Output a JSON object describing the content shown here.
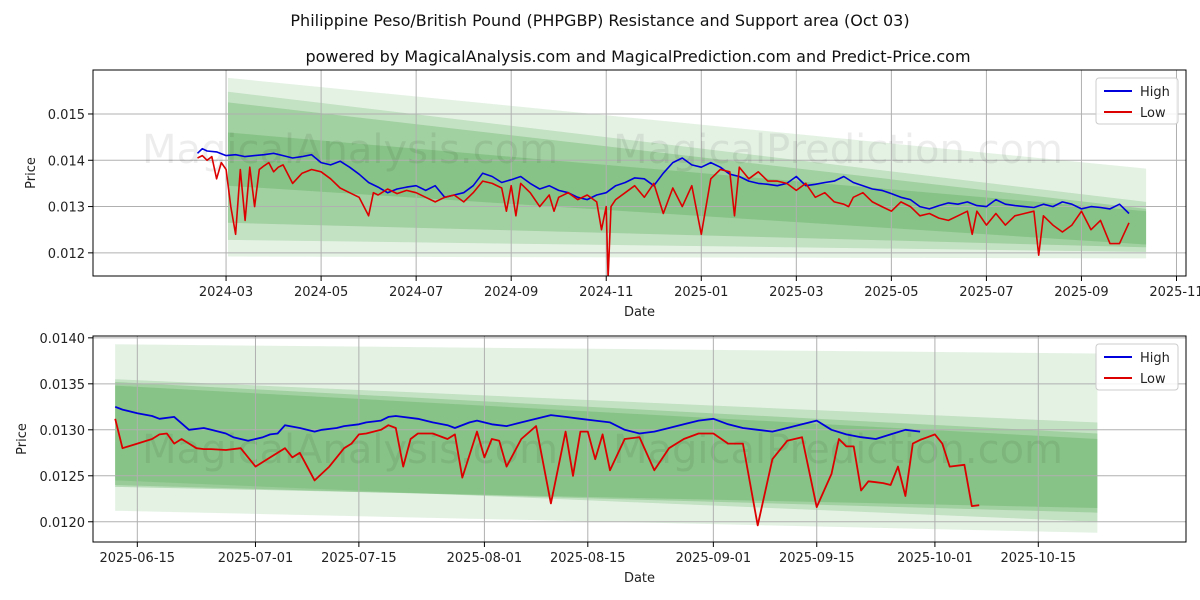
{
  "title": "Philippine Peso/British Pound (PHPGBP) Resistance and Support area (Oct 03)",
  "subtitle": "powered by MagicalAnalysis.com and MagicalPrediction.com and Predict-Price.com",
  "watermark": "MagicalAnalysis.com    MagicalPrediction.com",
  "colors": {
    "high": "#0000dd",
    "low": "#dd0000",
    "band": "#4ca64c"
  },
  "chart_data": [
    {
      "type": "line",
      "xlabel": "Date",
      "ylabel": "Price",
      "x_ticks": [
        "2024-03",
        "2024-05",
        "2024-07",
        "2024-09",
        "2024-11",
        "2025-01",
        "2025-03",
        "2025-05",
        "2025-07",
        "2025-09",
        "2025-11"
      ],
      "y_ticks": [
        "0.012",
        "0.013",
        "0.014",
        "0.015"
      ],
      "ylim": [
        0.0115,
        0.01595
      ],
      "legend": [
        "High",
        "Low"
      ],
      "legend_position": "top-right",
      "grid": true,
      "bands": [
        {
          "x": [
            0.02,
            9.68
          ],
          "upper": [
            0.01578,
            0.01382
          ],
          "lower": [
            0.01192,
            0.01188
          ],
          "opacity": 0.15
        },
        {
          "x": [
            0.02,
            9.68
          ],
          "upper": [
            0.01548,
            0.0131
          ],
          "lower": [
            0.01228,
            0.01202
          ],
          "opacity": 0.22
        },
        {
          "x": [
            0.02,
            9.68
          ],
          "upper": [
            0.01525,
            0.01295
          ],
          "lower": [
            0.01265,
            0.01212
          ],
          "opacity": 0.28
        },
        {
          "x": [
            0.02,
            9.68
          ],
          "upper": [
            0.0146,
            0.0129
          ],
          "lower": [
            0.01345,
            0.01218
          ],
          "opacity": 0.3
        }
      ],
      "series": [
        {
          "name": "High",
          "x": [
            -0.3,
            -0.25,
            -0.2,
            -0.1,
            0,
            0.1,
            0.2,
            0.3,
            0.4,
            0.5,
            0.6,
            0.7,
            0.8,
            0.9,
            1.0,
            1.1,
            1.2,
            1.3,
            1.4,
            1.5,
            1.6,
            1.7,
            1.8,
            1.9,
            2.0,
            2.1,
            2.2,
            2.3,
            2.4,
            2.5,
            2.6,
            2.7,
            2.8,
            2.9,
            3.0,
            3.1,
            3.2,
            3.3,
            3.4,
            3.5,
            3.6,
            3.7,
            3.8,
            3.9,
            4.0,
            4.1,
            4.2,
            4.3,
            4.4,
            4.5,
            4.6,
            4.7,
            4.8,
            4.9,
            5.0,
            5.1,
            5.2,
            5.3,
            5.4,
            5.5,
            5.6,
            5.7,
            5.8,
            5.9,
            6.0,
            6.1,
            6.2,
            6.3,
            6.4,
            6.5,
            6.6,
            6.7,
            6.8,
            6.9,
            7.0,
            7.1,
            7.2,
            7.3,
            7.4,
            7.5,
            7.6,
            7.7,
            7.8,
            7.9,
            8.0,
            8.1,
            8.2,
            8.3,
            8.4,
            8.5,
            8.6,
            8.7,
            8.8,
            8.9,
            9.0,
            9.1,
            9.2,
            9.3,
            9.4,
            9.5
          ],
          "y": [
            0.01415,
            0.01425,
            0.0142,
            0.01418,
            0.0141,
            0.01412,
            0.01408,
            0.0141,
            0.01412,
            0.01415,
            0.0141,
            0.01405,
            0.01408,
            0.01412,
            0.01395,
            0.0139,
            0.01398,
            0.01385,
            0.0137,
            0.01352,
            0.01342,
            0.0133,
            0.01338,
            0.01342,
            0.01345,
            0.01335,
            0.01345,
            0.0132,
            0.01325,
            0.0133,
            0.01345,
            0.01372,
            0.01365,
            0.01352,
            0.01358,
            0.01365,
            0.0135,
            0.01338,
            0.01345,
            0.01335,
            0.0133,
            0.0132,
            0.01315,
            0.01325,
            0.0133,
            0.01345,
            0.01352,
            0.01362,
            0.0136,
            0.01345,
            0.01372,
            0.01395,
            0.01405,
            0.0139,
            0.01385,
            0.01395,
            0.01385,
            0.0137,
            0.01365,
            0.01355,
            0.0135,
            0.01348,
            0.01345,
            0.0135,
            0.01365,
            0.01345,
            0.01348,
            0.01352,
            0.01355,
            0.01365,
            0.01352,
            0.01345,
            0.01338,
            0.01335,
            0.01328,
            0.0132,
            0.01315,
            0.013,
            0.01295,
            0.01302,
            0.01308,
            0.01305,
            0.0131,
            0.01302,
            0.013,
            0.01315,
            0.01305,
            0.01302,
            0.013,
            0.01298,
            0.01305,
            0.013,
            0.0131,
            0.01305,
            0.01295,
            0.013,
            0.01298,
            0.01295,
            0.01305,
            0.01285
          ]
        },
        {
          "name": "Low",
          "x": [
            -0.3,
            -0.25,
            -0.2,
            -0.15,
            -0.1,
            -0.05,
            0,
            0.05,
            0.1,
            0.15,
            0.2,
            0.25,
            0.3,
            0.35,
            0.4,
            0.45,
            0.5,
            0.55,
            0.6,
            0.7,
            0.8,
            0.9,
            1.0,
            1.1,
            1.2,
            1.3,
            1.4,
            1.5,
            1.55,
            1.6,
            1.7,
            1.8,
            1.9,
            2.0,
            2.1,
            2.2,
            2.3,
            2.4,
            2.5,
            2.6,
            2.7,
            2.8,
            2.9,
            2.95,
            3.0,
            3.05,
            3.1,
            3.2,
            3.3,
            3.4,
            3.45,
            3.5,
            3.6,
            3.7,
            3.8,
            3.9,
            3.95,
            4.0,
            4.02,
            4.05,
            4.1,
            4.2,
            4.3,
            4.4,
            4.5,
            4.6,
            4.7,
            4.8,
            4.9,
            5.0,
            5.1,
            5.2,
            5.3,
            5.35,
            5.4,
            5.5,
            5.6,
            5.7,
            5.8,
            5.9,
            6.0,
            6.1,
            6.2,
            6.3,
            6.4,
            6.5,
            6.55,
            6.6,
            6.7,
            6.8,
            6.9,
            7.0,
            7.1,
            7.2,
            7.3,
            7.4,
            7.5,
            7.6,
            7.7,
            7.8,
            7.85,
            7.9,
            8.0,
            8.1,
            8.2,
            8.3,
            8.4,
            8.5,
            8.55,
            8.6,
            8.7,
            8.8,
            8.9,
            9.0,
            9.1,
            9.2,
            9.3,
            9.4,
            9.5
          ],
          "y": [
            0.01405,
            0.0141,
            0.014,
            0.01408,
            0.0136,
            0.01395,
            0.0138,
            0.013,
            0.0124,
            0.0138,
            0.0127,
            0.01385,
            0.013,
            0.0138,
            0.01388,
            0.01395,
            0.01375,
            0.01385,
            0.0139,
            0.0135,
            0.01372,
            0.0138,
            0.01375,
            0.0136,
            0.0134,
            0.0133,
            0.0132,
            0.0128,
            0.0133,
            0.01325,
            0.01338,
            0.01328,
            0.01335,
            0.0133,
            0.0132,
            0.0131,
            0.0132,
            0.01325,
            0.0131,
            0.0133,
            0.01355,
            0.0135,
            0.0134,
            0.0129,
            0.01345,
            0.0128,
            0.0135,
            0.0133,
            0.013,
            0.01325,
            0.0129,
            0.0132,
            0.0133,
            0.01315,
            0.01325,
            0.0131,
            0.0125,
            0.013,
            0.01145,
            0.013,
            0.01315,
            0.0133,
            0.01345,
            0.0132,
            0.0135,
            0.01285,
            0.0134,
            0.013,
            0.01345,
            0.0124,
            0.0136,
            0.0138,
            0.01375,
            0.0128,
            0.01385,
            0.0136,
            0.01375,
            0.01355,
            0.01355,
            0.0135,
            0.01335,
            0.0135,
            0.0132,
            0.0133,
            0.0131,
            0.01305,
            0.013,
            0.0132,
            0.0133,
            0.0131,
            0.013,
            0.0129,
            0.0131,
            0.013,
            0.0128,
            0.01285,
            0.01275,
            0.0127,
            0.0128,
            0.0129,
            0.0124,
            0.0129,
            0.0126,
            0.01285,
            0.0126,
            0.0128,
            0.01285,
            0.0129,
            0.01195,
            0.0128,
            0.0126,
            0.01245,
            0.0126,
            0.0129,
            0.0125,
            0.0127,
            0.0122,
            0.0122,
            0.01265
          ]
        }
      ]
    },
    {
      "type": "line",
      "xlabel": "Date",
      "ylabel": "Price",
      "x_ticks": [
        "2025-06-15",
        "2025-07-01",
        "2025-07-15",
        "2025-08-01",
        "2025-08-15",
        "2025-09-01",
        "2025-09-15",
        "2025-10-01",
        "2025-10-15"
      ],
      "y_ticks": [
        "0.0120",
        "0.0125",
        "0.0130",
        "0.0135",
        "0.0140"
      ],
      "ylim": [
        0.01178,
        0.01402
      ],
      "legend": [
        "High",
        "Low"
      ],
      "legend_position": "top-right",
      "grid": true,
      "bands": [
        {
          "x": [
            -3,
            130
          ],
          "upper": [
            0.01393,
            0.01383
          ],
          "lower": [
            0.01212,
            0.01188
          ],
          "opacity": 0.15
        },
        {
          "x": [
            -3,
            130
          ],
          "upper": [
            0.01355,
            0.01308
          ],
          "lower": [
            0.01245,
            0.012
          ],
          "opacity": 0.22
        },
        {
          "x": [
            -3,
            130
          ],
          "upper": [
            0.01352,
            0.01296
          ],
          "lower": [
            0.0124,
            0.0121
          ],
          "opacity": 0.28
        },
        {
          "x": [
            -3,
            130
          ],
          "upper": [
            0.01348,
            0.0129
          ],
          "lower": [
            0.01238,
            0.01215
          ],
          "opacity": 0.3
        }
      ],
      "series": [
        {
          "name": "High",
          "x": [
            -3,
            -2,
            0,
            2,
            3,
            5,
            7,
            9,
            10,
            12,
            13,
            15,
            16,
            17,
            18,
            19,
            20,
            22,
            24,
            25,
            27,
            28,
            30,
            31,
            33,
            34,
            35,
            38,
            40,
            42,
            43,
            45,
            46,
            48,
            50,
            52,
            54,
            56,
            58,
            60,
            62,
            64,
            66,
            68,
            70,
            72,
            74,
            76,
            78,
            80,
            82,
            84,
            86,
            88,
            90,
            92,
            94,
            96,
            98,
            100,
            102,
            104,
            106
          ],
          "y": [
            0.01325,
            0.01322,
            0.01318,
            0.01315,
            0.01312,
            0.01314,
            0.013,
            0.01302,
            0.013,
            0.01296,
            0.01292,
            0.01288,
            0.0129,
            0.01292,
            0.01295,
            0.01296,
            0.01305,
            0.01302,
            0.01298,
            0.013,
            0.01302,
            0.01304,
            0.01306,
            0.01308,
            0.0131,
            0.01314,
            0.01315,
            0.01312,
            0.01308,
            0.01305,
            0.01302,
            0.01308,
            0.0131,
            0.01306,
            0.01304,
            0.01308,
            0.01312,
            0.01316,
            0.01314,
            0.01312,
            0.0131,
            0.01308,
            0.013,
            0.01296,
            0.01298,
            0.01302,
            0.01306,
            0.0131,
            0.01312,
            0.01306,
            0.01302,
            0.013,
            0.01298,
            0.01302,
            0.01306,
            0.0131,
            0.013,
            0.01295,
            0.01292,
            0.0129,
            0.01295,
            0.013,
            0.01298
          ]
        },
        {
          "name": "Low",
          "x": [
            -3,
            -2,
            0,
            2,
            3,
            4,
            5,
            6,
            8,
            9,
            10,
            12,
            14,
            16,
            18,
            20,
            21,
            22,
            24,
            26,
            28,
            29,
            30,
            31,
            33,
            34,
            35,
            36,
            37,
            38,
            40,
            42,
            43,
            44,
            46,
            47,
            48,
            49,
            50,
            52,
            54,
            56,
            58,
            59,
            60,
            61,
            62,
            63,
            64,
            66,
            68,
            70,
            72,
            74,
            76,
            78,
            80,
            82,
            84,
            86,
            88,
            90,
            92,
            94,
            95,
            96,
            97,
            98,
            99,
            100,
            101,
            102,
            103,
            104,
            105,
            106,
            107,
            108,
            109,
            110,
            112,
            113,
            114
          ],
          "y": [
            0.01312,
            0.0128,
            0.01285,
            0.0129,
            0.01295,
            0.01296,
            0.01285,
            0.0129,
            0.0128,
            0.01279,
            0.01279,
            0.01278,
            0.0128,
            0.0126,
            0.0127,
            0.0128,
            0.0127,
            0.01275,
            0.01245,
            0.0126,
            0.0128,
            0.01285,
            0.01295,
            0.01296,
            0.013,
            0.01305,
            0.01302,
            0.0126,
            0.0129,
            0.01296,
            0.01296,
            0.0129,
            0.01295,
            0.01248,
            0.01298,
            0.0127,
            0.0129,
            0.01288,
            0.0126,
            0.0129,
            0.01304,
            0.0122,
            0.01298,
            0.0125,
            0.01298,
            0.01298,
            0.01268,
            0.01295,
            0.01256,
            0.0129,
            0.01292,
            0.01256,
            0.0128,
            0.0129,
            0.01296,
            0.01296,
            0.01285,
            0.01285,
            0.01196,
            0.01268,
            0.01288,
            0.01292,
            0.01216,
            0.01252,
            0.0129,
            0.01282,
            0.01282,
            0.01234,
            0.01244,
            0.01243,
            0.01242,
            0.0124,
            0.0126,
            0.01228,
            0.01285,
            0.01289,
            0.01292,
            0.01295,
            0.01285,
            0.0126,
            0.01262,
            0.01217,
            0.01218
          ]
        }
      ]
    }
  ]
}
